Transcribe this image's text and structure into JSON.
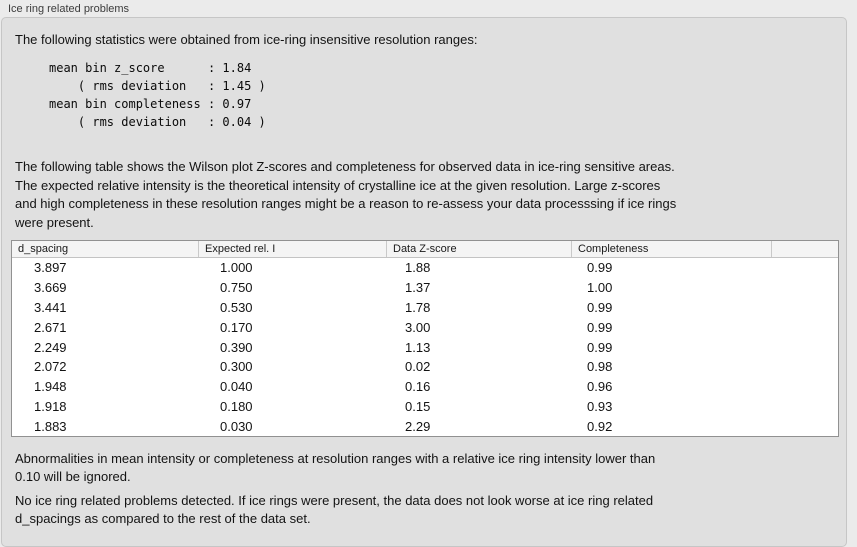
{
  "panel": {
    "title": "Ice ring related problems"
  },
  "intro": "The following statistics were obtained from ice-ring insensitive resolution ranges:",
  "stats_block": "mean bin z_score      : 1.84\n    ( rms deviation   : 1.45 )\nmean bin completeness : 0.97\n    ( rms deviation   : 0.04 )",
  "stats": {
    "mean_bin_z_score": "1.84",
    "z_score_rms_deviation": "1.45",
    "mean_bin_completeness": "0.97",
    "completeness_rms_deviation": "0.04"
  },
  "description": "The following table shows the Wilson plot Z-scores and completeness for observed data in ice-ring sensitive areas.\nThe expected relative intensity is the theoretical intensity of crystalline ice at the given resolution. Large z-scores\nand high completeness in these resolution ranges might be a reason to re-assess your data processsing if ice rings\nwere present.",
  "table": {
    "columns": [
      "d_spacing",
      "Expected rel. I",
      "Data Z-score",
      "Completeness"
    ],
    "rows": [
      [
        "3.897",
        "1.000",
        "1.88",
        "0.99"
      ],
      [
        "3.669",
        "0.750",
        "1.37",
        "1.00"
      ],
      [
        "3.441",
        "0.530",
        "1.78",
        "0.99"
      ],
      [
        "2.671",
        "0.170",
        "3.00",
        "0.99"
      ],
      [
        "2.249",
        "0.390",
        "1.13",
        "0.99"
      ],
      [
        "2.072",
        "0.300",
        "0.02",
        "0.98"
      ],
      [
        "1.948",
        "0.040",
        "0.16",
        "0.96"
      ],
      [
        "1.918",
        "0.180",
        "0.15",
        "0.93"
      ],
      [
        "1.883",
        "0.030",
        "2.29",
        "0.92"
      ]
    ]
  },
  "notes": {
    "ignore_rule": "Abnormalities in mean intensity or completeness at resolution ranges with a relative ice ring intensity lower than\n0.10 will be ignored.",
    "conclusion": "No ice ring related problems detected. If ice rings were present, the data does not look worse at ice ring related\nd_spacings as compared to the rest of the data set."
  }
}
